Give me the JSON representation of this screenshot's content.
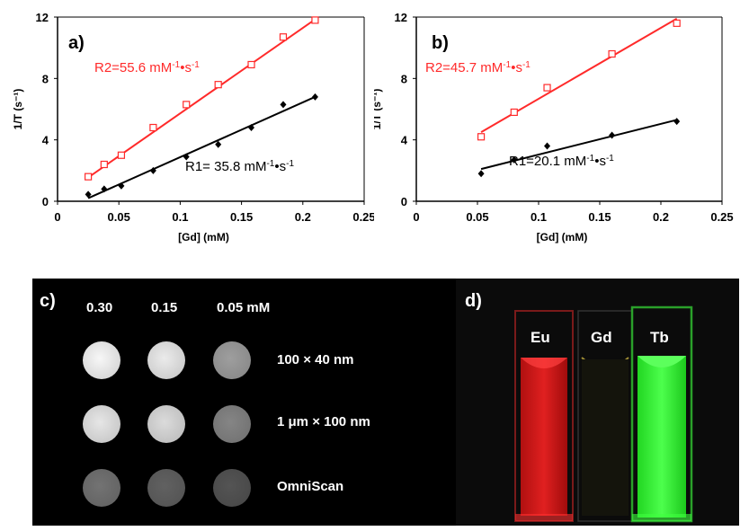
{
  "chart_data": [
    {
      "type": "scatter",
      "panel": "a)",
      "xlabel": "[Gd] (mM)",
      "ylabel": "1/T (s⁻¹)",
      "xlim": [
        0,
        0.25
      ],
      "ylim": [
        0,
        12
      ],
      "xticks": [
        "0",
        "0.05",
        "0.1",
        "0.15",
        "0.2",
        "0.25"
      ],
      "yticks": [
        "0",
        "4",
        "8",
        "12"
      ],
      "grid": false,
      "series": [
        {
          "label": "R2=55.6 mM⁻¹•s⁻¹",
          "color": "#ff2a2a",
          "marker": "open-square",
          "x": [
            0.025,
            0.038,
            0.052,
            0.078,
            0.105,
            0.131,
            0.158,
            0.184,
            0.21
          ],
          "y": [
            1.6,
            2.4,
            3.0,
            4.8,
            6.3,
            7.6,
            8.9,
            10.7,
            11.8
          ],
          "fit": [
            [
              0.025,
              1.55
            ],
            [
              0.21,
              11.85
            ]
          ]
        },
        {
          "label": "R1= 35.8 mM⁻¹•s⁻¹",
          "color": "#000000",
          "marker": "filled-diamond",
          "x": [
            0.025,
            0.038,
            0.052,
            0.078,
            0.105,
            0.131,
            0.158,
            0.184,
            0.21
          ],
          "y": [
            0.45,
            0.8,
            1.0,
            2.0,
            2.9,
            3.7,
            4.8,
            6.3,
            6.8
          ],
          "fit": [
            [
              0.025,
              0.2
            ],
            [
              0.21,
              6.8
            ]
          ]
        }
      ]
    },
    {
      "type": "scatter",
      "panel": "b)",
      "xlabel": "[Gd] (mM)",
      "ylabel": "1/T (s⁻¹)",
      "xlim": [
        0,
        0.25
      ],
      "ylim": [
        0,
        12
      ],
      "xticks": [
        "0",
        "0.05",
        "0.1",
        "0.15",
        "0.2",
        "0.25"
      ],
      "yticks": [
        "0",
        "4",
        "8",
        "12"
      ],
      "grid": false,
      "series": [
        {
          "label": "R2=45.7 mM⁻¹•s⁻¹",
          "color": "#ff2a2a",
          "marker": "open-square",
          "x": [
            0.053,
            0.08,
            0.107,
            0.16,
            0.213
          ],
          "y": [
            4.2,
            5.8,
            7.4,
            9.6,
            11.6
          ],
          "fit": [
            [
              0.053,
              4.5
            ],
            [
              0.213,
              11.9
            ]
          ]
        },
        {
          "label": "R1=20.1 mM⁻¹•s⁻¹",
          "color": "#000000",
          "marker": "filled-diamond",
          "x": [
            0.053,
            0.08,
            0.107,
            0.16,
            0.213
          ],
          "y": [
            1.8,
            2.7,
            3.6,
            4.3,
            5.2
          ],
          "fit": [
            [
              0.053,
              2.1
            ],
            [
              0.213,
              5.3
            ]
          ]
        }
      ]
    }
  ],
  "panel_c": {
    "letter": "c)",
    "concentrations": [
      "0.30",
      "0.15",
      "0.05 mM"
    ],
    "rows": [
      {
        "label": "100 × 40 nm",
        "brightness": [
          0.97,
          0.92,
          0.62
        ]
      },
      {
        "label": "1 μm × 100 nm",
        "brightness": [
          0.9,
          0.86,
          0.52
        ]
      },
      {
        "label": "OmniScan",
        "brightness": [
          0.45,
          0.38,
          0.33
        ]
      }
    ]
  },
  "panel_d": {
    "letter": "d)",
    "cuvettes": [
      {
        "label": "Eu",
        "color": "#ff2020"
      },
      {
        "label": "Gd",
        "color": "#1a1a10"
      },
      {
        "label": "Tb",
        "color": "#2cff2c"
      }
    ]
  }
}
